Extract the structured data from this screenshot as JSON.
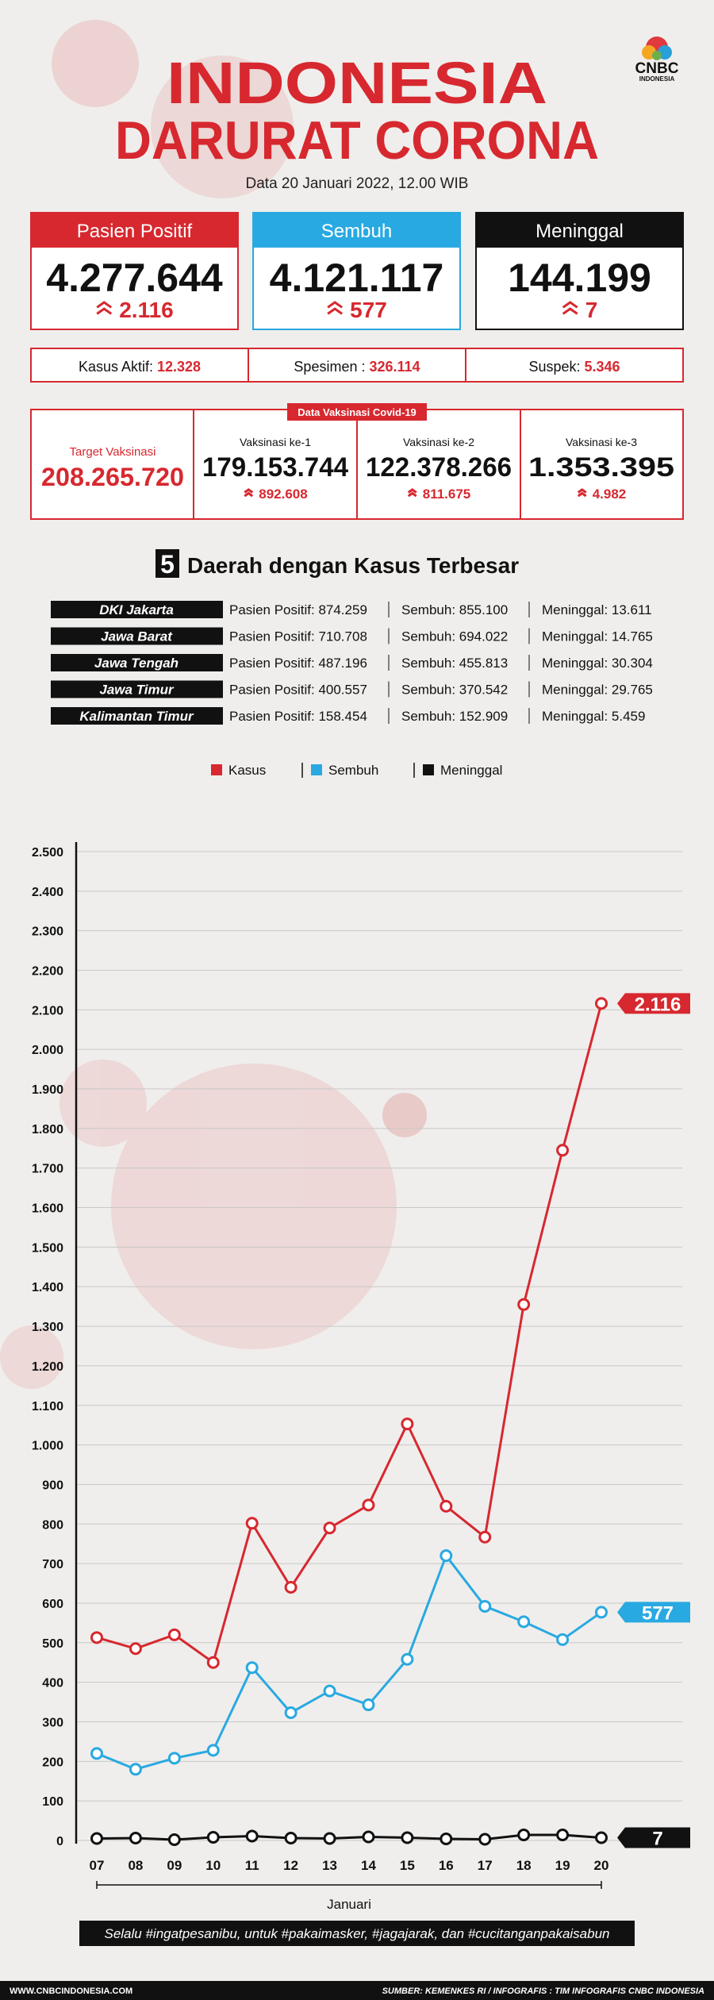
{
  "header": {
    "title_line1": "INDONESIA",
    "title_line2": "DARURAT CORONA",
    "logo": "CNBC",
    "logo_sub": "INDONESIA",
    "date": "Data 20 Januari 2022, 12.00 WIB"
  },
  "cards": [
    {
      "label": "Pasien Positif",
      "total": "4.277.644",
      "change": "2.116",
      "color": "#d7282f"
    },
    {
      "label": "Sembuh",
      "total": "4.121.117",
      "change": "577",
      "color": "#29a9e1"
    },
    {
      "label": "Meninggal",
      "total": "144.199",
      "change": "7",
      "color": "#111111"
    }
  ],
  "stats": [
    {
      "label": "Kasus Aktif:",
      "value": "12.328"
    },
    {
      "label": "Spesimen :",
      "value": "326.114"
    },
    {
      "label": "Suspek:",
      "value": "5.346"
    }
  ],
  "vaccination": {
    "title": "Data Vaksinasi Covid-19",
    "target_label": "Target Vaksinasi",
    "target": "208.265.720",
    "doses": [
      {
        "label": "Vaksinasi ke-1",
        "total": "179.153.744",
        "change": "892.608"
      },
      {
        "label": "Vaksinasi ke-2",
        "total": "122.378.266",
        "change": "811.675"
      },
      {
        "label": "Vaksinasi ke-3",
        "total": "1.353.395",
        "change": "4.982"
      }
    ]
  },
  "regions": {
    "number": "5",
    "title": "Daerah dengan Kasus Terbesar",
    "rows": [
      {
        "name": "DKI Jakarta",
        "positif": "Pasien Positif: 874.259",
        "sembuh": "Sembuh: 855.100",
        "meninggal": "Meninggal: 13.611"
      },
      {
        "name": "Jawa Barat",
        "positif": "Pasien Positif: 710.708",
        "sembuh": "Sembuh: 694.022",
        "meninggal": "Meninggal: 14.765"
      },
      {
        "name": "Jawa Tengah",
        "positif": "Pasien Positif: 487.196",
        "sembuh": "Sembuh: 455.813",
        "meninggal": "Meninggal: 30.304"
      },
      {
        "name": "Jawa Timur",
        "positif": "Pasien Positif: 400.557",
        "sembuh": "Sembuh: 370.542",
        "meninggal": "Meninggal: 29.765"
      },
      {
        "name": "Kalimantan Timur",
        "positif": "Pasien Positif: 158.454",
        "sembuh": "Sembuh: 152.909",
        "meninggal": "Meninggal: 5.459"
      }
    ]
  },
  "chart_data": {
    "type": "line",
    "xlabel": "Januari",
    "categories": [
      "07",
      "08",
      "09",
      "10",
      "11",
      "12",
      "13",
      "14",
      "15",
      "16",
      "17",
      "18",
      "19",
      "20"
    ],
    "series": [
      {
        "name": "Kasus",
        "color": "#d7282f",
        "values": [
          513,
          485,
          520,
          450,
          802,
          640,
          790,
          848,
          1053,
          845,
          767,
          1355,
          1745,
          2116
        ],
        "value_labels": [
          null,
          null,
          null,
          null,
          null,
          null,
          null,
          null,
          null,
          null,
          null,
          null,
          null,
          "2.116"
        ]
      },
      {
        "name": "Sembuh",
        "color": "#29a9e1",
        "values": [
          220,
          180,
          208,
          228,
          437,
          323,
          378,
          343,
          458,
          720,
          592,
          553,
          508,
          577
        ]
      },
      {
        "name": "Meninggal",
        "color": "#111111",
        "values": [
          5,
          6,
          2,
          8,
          11,
          6,
          5,
          9,
          7,
          4,
          3,
          14,
          14,
          7
        ]
      }
    ],
    "ylim": [
      0,
      2500
    ],
    "yticks": [
      0,
      100,
      200,
      300,
      400,
      500,
      600,
      700,
      800,
      900,
      {
        "value": 1000,
        "label": "1.000"
      },
      {
        "value": 1100,
        "label": "1.100"
      },
      {
        "value": 1200,
        "label": "1.200"
      },
      {
        "value": 1300,
        "label": "1.300"
      },
      {
        "value": 1400,
        "label": "1.400"
      },
      {
        "value": 1500,
        "label": "1.500"
      },
      {
        "value": 1600,
        "label": "1.600"
      },
      {
        "value": 1700,
        "label": "1.700"
      },
      {
        "value": 1800,
        "label": "1.800"
      },
      {
        "value": 1900,
        "label": "1.900"
      },
      {
        "value": 2000,
        "label": "2.000"
      },
      {
        "value": 2100,
        "label": "2.100"
      },
      {
        "value": 2200,
        "label": "2.200"
      },
      {
        "value": 2300,
        "label": "2.300"
      },
      {
        "value": 2400,
        "label": "2.400"
      },
      {
        "value": 2500,
        "label": "2.500"
      }
    ],
    "grid": true
  },
  "footer": {
    "slogan": "Selalu #ingatpesanibu, untuk #pakaimasker, #jagajarak, dan #cucitanganpakaisabun",
    "website": "WWW.CNBCINDONESIA.COM",
    "source": "SUMBER: KEMENKES RI / INFOGRAFIS : TIM INFOGRAFIS CNBC INDONESIA"
  }
}
